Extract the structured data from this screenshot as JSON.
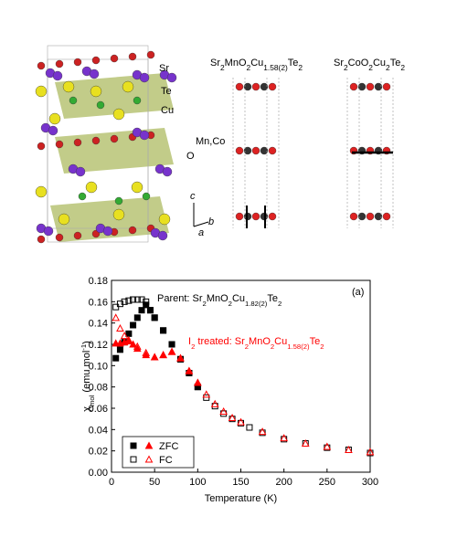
{
  "structure": {
    "atom_labels": [
      "Sr",
      "Te",
      "Cu",
      "Mn,Co",
      "O"
    ],
    "axis_labels": [
      "c",
      "b",
      "a"
    ],
    "titles": [
      [
        {
          "t": "Sr"
        },
        {
          "sub": "2"
        },
        {
          "t": "MnO"
        },
        {
          "sub": "2"
        },
        {
          "t": "Cu"
        },
        {
          "sub": "1.58(2)"
        },
        {
          "t": "Te"
        },
        {
          "sub": "2"
        }
      ],
      [
        {
          "t": "Sr"
        },
        {
          "sub": "2"
        },
        {
          "t": "CoO"
        },
        {
          "sub": "2"
        },
        {
          "t": "Cu"
        },
        {
          "sub": "2"
        },
        {
          "t": "Te"
        },
        {
          "sub": "2"
        }
      ]
    ]
  },
  "chart_data": {
    "type": "scatter",
    "panel_label": "(a)",
    "x_label": "Temperature (K)",
    "y_label": [
      {
        "t": "χ"
      },
      {
        "sub": "mol"
      },
      {
        "t": " (emu mol"
      },
      {
        "sup": "-1"
      },
      {
        "t": ")"
      }
    ],
    "annotations": [
      {
        "color": "#000000",
        "parts": [
          {
            "t": "Parent: Sr"
          },
          {
            "sub": "2"
          },
          {
            "t": "MnO"
          },
          {
            "sub": "2"
          },
          {
            "t": "Cu"
          },
          {
            "sub": "1.82(2)"
          },
          {
            "t": "Te"
          },
          {
            "sub": "2"
          }
        ]
      },
      {
        "color": "#ff0000",
        "parts": [
          {
            "t": "I"
          },
          {
            "sub": "2"
          },
          {
            "t": " treated: Sr"
          },
          {
            "sub": "2"
          },
          {
            "t": "MnO"
          },
          {
            "sub": "2"
          },
          {
            "t": "Cu"
          },
          {
            "sub": "1.58(2)"
          },
          {
            "t": "Te"
          },
          {
            "sub": "2"
          }
        ]
      }
    ],
    "xlim": [
      0,
      300
    ],
    "xticks": [
      0,
      50,
      100,
      150,
      200,
      250,
      300
    ],
    "ylim": [
      0,
      0.18
    ],
    "yticks": [
      {
        "value": 0,
        "label": "0.00"
      },
      0.02,
      0.04,
      0.06,
      0.08,
      {
        "value": 0.1,
        "label": "0.10"
      },
      0.12,
      0.14,
      0.16,
      0.18
    ],
    "series": [
      {
        "name": "ZFC",
        "color": "#000000",
        "marker": "square",
        "filled": true,
        "x": [
          5,
          10,
          15,
          20,
          25,
          30,
          35,
          40,
          45,
          50,
          60,
          70,
          80,
          90,
          100
        ],
        "values": [
          0.107,
          0.115,
          0.122,
          0.13,
          0.138,
          0.145,
          0.152,
          0.157,
          0.152,
          0.145,
          0.133,
          0.12,
          0.106,
          0.093,
          0.08
        ]
      },
      {
        "name": "FC",
        "color": "#000000",
        "marker": "square",
        "filled": false,
        "x": [
          5,
          10,
          15,
          20,
          25,
          30,
          35,
          40,
          45,
          50,
          60,
          70,
          80,
          90,
          100,
          110,
          120,
          130,
          140,
          150,
          160,
          175,
          200,
          225,
          250,
          275,
          300
        ],
        "values": [
          0.155,
          0.158,
          0.16,
          0.161,
          0.162,
          0.162,
          0.162,
          0.16,
          0.152,
          0.145,
          0.133,
          0.12,
          0.106,
          0.093,
          0.08,
          0.07,
          0.062,
          0.055,
          0.05,
          0.046,
          0.042,
          0.037,
          0.031,
          0.027,
          0.023,
          0.021,
          0.018
        ]
      },
      {
        "color": "#ff0000",
        "marker": "triangle",
        "filled": true,
        "x": [
          5,
          10,
          15,
          20,
          25,
          30,
          40,
          50,
          60,
          70,
          80,
          90,
          100
        ],
        "values": [
          0.121,
          0.121,
          0.122,
          0.123,
          0.12,
          0.116,
          0.11,
          0.108,
          0.11,
          0.113,
          0.107,
          0.095,
          0.084
        ]
      },
      {
        "color": "#ff0000",
        "marker": "triangle",
        "filled": false,
        "x": [
          5,
          10,
          15,
          20,
          30,
          40,
          50,
          60,
          70,
          80,
          90,
          100,
          110,
          120,
          130,
          140,
          150,
          175,
          200,
          225,
          250,
          275,
          300
        ],
        "values": [
          0.145,
          0.135,
          0.128,
          0.124,
          0.118,
          0.112,
          0.108,
          0.11,
          0.113,
          0.107,
          0.095,
          0.084,
          0.073,
          0.064,
          0.057,
          0.051,
          0.047,
          0.038,
          0.032,
          0.027,
          0.024,
          0.021,
          0.019
        ]
      }
    ]
  }
}
